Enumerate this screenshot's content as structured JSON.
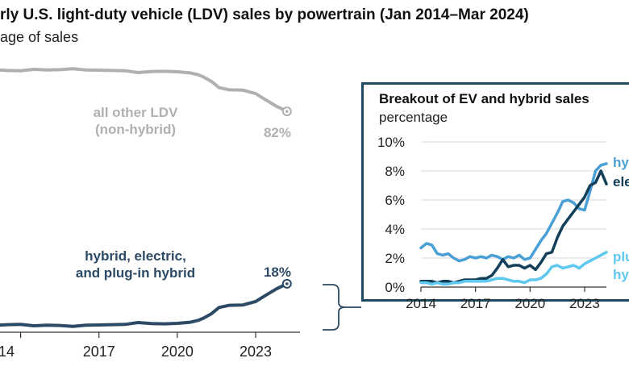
{
  "title": "rly U.S. light-duty vehicle (LDV) sales by powertrain (Jan 2014–Mar 2024)",
  "subtitle": "age of sales",
  "chart_data": [
    {
      "type": "line",
      "x_ticks": [
        "14",
        "2017",
        "2020",
        "2023"
      ],
      "x_tick_values": [
        2014,
        2017,
        2020,
        2023
      ],
      "xlim": [
        2012.9,
        2024.7
      ],
      "ylim": [
        0,
        100
      ],
      "grid": false,
      "series": [
        {
          "name": "all other LDV (non-hybrid)",
          "label_lines": [
            "all other LDV",
            "(non-hybrid)"
          ],
          "end_label": "82%",
          "color": "#b0b0b0",
          "x": [
            2013.0,
            2013.5,
            2014.0,
            2014.5,
            2015.0,
            2015.5,
            2016.0,
            2016.5,
            2017.0,
            2017.5,
            2018.0,
            2018.5,
            2019.0,
            2019.5,
            2020.0,
            2020.5,
            2020.8,
            2021.0,
            2021.3,
            2021.6,
            2022.0,
            2022.5,
            2023.0,
            2023.4,
            2023.8,
            2024.2
          ],
          "y": [
            97.5,
            97.2,
            97.1,
            97.6,
            97.4,
            97.5,
            97.8,
            97.4,
            97.3,
            97.2,
            97.1,
            96.4,
            96.8,
            96.9,
            96.7,
            96.3,
            95.6,
            94.8,
            93.2,
            90.8,
            90.0,
            89.9,
            88.6,
            86.2,
            83.9,
            82.0
          ]
        },
        {
          "name": "hybrid, electric, and plug-in hybrid",
          "label_lines": [
            "hybrid, electric,",
            "and plug-in hybrid"
          ],
          "end_label": "18%",
          "color": "#2c4a66",
          "x": [
            2013.0,
            2013.5,
            2014.0,
            2014.5,
            2015.0,
            2015.5,
            2016.0,
            2016.5,
            2017.0,
            2017.5,
            2018.0,
            2018.5,
            2019.0,
            2019.5,
            2020.0,
            2020.5,
            2020.8,
            2021.0,
            2021.3,
            2021.6,
            2022.0,
            2022.5,
            2023.0,
            2023.4,
            2023.8,
            2024.2
          ],
          "y": [
            2.5,
            2.8,
            2.9,
            2.4,
            2.6,
            2.5,
            2.2,
            2.6,
            2.7,
            2.8,
            2.9,
            3.6,
            3.2,
            3.1,
            3.3,
            3.7,
            4.4,
            5.2,
            6.8,
            9.2,
            10.0,
            10.1,
            11.4,
            13.8,
            16.1,
            18.0
          ]
        }
      ]
    },
    {
      "type": "line",
      "title": "Breakout of EV and hybrid sales",
      "ylabel": "percentage",
      "x_ticks": [
        "2014",
        "2017",
        "2020",
        "2023"
      ],
      "x_tick_values": [
        2014,
        2017,
        2020,
        2023
      ],
      "xlim": [
        2014,
        2024.2
      ],
      "y_ticks": [
        "10%",
        "8%",
        "6%",
        "4%",
        "2%",
        "0%"
      ],
      "y_tick_values": [
        10,
        8,
        6,
        4,
        2,
        0
      ],
      "ylim": [
        0,
        10
      ],
      "grid": true,
      "series": [
        {
          "name": "hybrid",
          "label": "hy",
          "color": "#4a9fd4",
          "x": [
            2014.0,
            2014.3,
            2014.6,
            2014.9,
            2015.2,
            2015.5,
            2015.8,
            2016.1,
            2016.4,
            2016.7,
            2017.0,
            2017.3,
            2017.6,
            2017.9,
            2018.2,
            2018.5,
            2018.8,
            2019.1,
            2019.4,
            2019.7,
            2020.0,
            2020.3,
            2020.6,
            2020.9,
            2021.2,
            2021.5,
            2021.8,
            2022.1,
            2022.4,
            2022.7,
            2023.0,
            2023.3,
            2023.6,
            2023.9,
            2024.2
          ],
          "y": [
            2.7,
            3.0,
            2.9,
            2.3,
            2.2,
            2.3,
            2.0,
            1.8,
            1.9,
            2.1,
            2.0,
            2.1,
            2.0,
            2.2,
            2.1,
            1.9,
            2.1,
            2.0,
            2.2,
            1.9,
            2.0,
            2.6,
            3.2,
            3.7,
            4.4,
            5.1,
            5.9,
            6.0,
            5.8,
            5.4,
            5.3,
            6.6,
            8.0,
            8.4,
            8.5
          ]
        },
        {
          "name": "electric",
          "label": "ele",
          "color": "#12405a",
          "x": [
            2014.0,
            2014.3,
            2014.6,
            2014.9,
            2015.2,
            2015.5,
            2015.8,
            2016.1,
            2016.4,
            2016.7,
            2017.0,
            2017.3,
            2017.6,
            2017.9,
            2018.2,
            2018.5,
            2018.8,
            2019.1,
            2019.4,
            2019.7,
            2020.0,
            2020.3,
            2020.6,
            2020.9,
            2021.2,
            2021.5,
            2021.8,
            2022.1,
            2022.4,
            2022.7,
            2023.0,
            2023.3,
            2023.6,
            2023.9,
            2024.2
          ],
          "y": [
            0.4,
            0.4,
            0.4,
            0.3,
            0.4,
            0.4,
            0.3,
            0.4,
            0.5,
            0.5,
            0.5,
            0.6,
            0.6,
            0.8,
            1.3,
            1.9,
            1.4,
            1.5,
            1.5,
            1.3,
            1.5,
            1.2,
            1.7,
            2.3,
            2.4,
            3.4,
            4.2,
            4.7,
            5.2,
            5.7,
            6.2,
            7.0,
            7.2,
            8.0,
            7.1
          ]
        },
        {
          "name": "plug-in hybrid",
          "label_lines": [
            "plu",
            "hy"
          ],
          "color": "#5ec8ee",
          "x": [
            2014.0,
            2014.3,
            2014.6,
            2014.9,
            2015.2,
            2015.5,
            2015.8,
            2016.1,
            2016.4,
            2016.7,
            2017.0,
            2017.3,
            2017.6,
            2017.9,
            2018.2,
            2018.5,
            2018.8,
            2019.1,
            2019.4,
            2019.7,
            2020.0,
            2020.3,
            2020.6,
            2020.9,
            2021.2,
            2021.5,
            2021.8,
            2022.1,
            2022.4,
            2022.7,
            2023.0,
            2023.3,
            2023.6,
            2023.9,
            2024.2
          ],
          "y": [
            0.3,
            0.3,
            0.2,
            0.3,
            0.2,
            0.2,
            0.3,
            0.3,
            0.4,
            0.4,
            0.4,
            0.4,
            0.4,
            0.5,
            0.6,
            0.6,
            0.5,
            0.4,
            0.4,
            0.3,
            0.5,
            0.5,
            0.6,
            0.9,
            1.4,
            1.5,
            1.3,
            1.4,
            1.5,
            1.3,
            1.6,
            1.8,
            2.0,
            2.2,
            2.4
          ]
        }
      ]
    }
  ]
}
